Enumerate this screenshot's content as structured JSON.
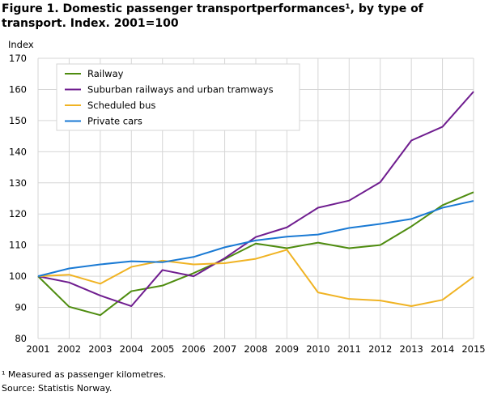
{
  "chart_data": {
    "type": "line",
    "title": "Figure 1. Domestic passenger transportperformances¹, by type of transport. Index. 2001=100",
    "ylabel": "Index",
    "xlabel": "",
    "ylim": [
      80,
      170
    ],
    "yticks": [
      80,
      90,
      100,
      110,
      120,
      130,
      140,
      150,
      160,
      170
    ],
    "grid": true,
    "legend_placement": "top-left",
    "x": [
      2001,
      2002,
      2003,
      2004,
      2005,
      2006,
      2007,
      2008,
      2009,
      2010,
      2011,
      2012,
      2013,
      2014,
      2015
    ],
    "series": [
      {
        "name": "Railway",
        "color": "#4e8c0f",
        "values": [
          100,
          90.2,
          87.5,
          95.2,
          97,
          101,
          105.5,
          110.5,
          109,
          110.8,
          109,
          110,
          116,
          122.8,
          127
        ]
      },
      {
        "name": "Suburban railways and urban tramways",
        "color": "#6f1d8f",
        "values": [
          100,
          98,
          93.8,
          90.4,
          102,
          100,
          105.8,
          112.6,
          115.7,
          122,
          124.3,
          130.2,
          143.6,
          148,
          159.3
        ]
      },
      {
        "name": "Scheduled bus",
        "color": "#f0b323",
        "values": [
          100,
          100.5,
          97.6,
          103,
          105,
          103.8,
          104.2,
          105.6,
          108.5,
          94.8,
          92.7,
          92.2,
          90.4,
          92.4,
          99.8
        ]
      },
      {
        "name": "Private cars",
        "color": "#1a7ad4",
        "values": [
          100,
          102.5,
          103.8,
          104.8,
          104.5,
          106.2,
          109.3,
          111.5,
          112.7,
          113.4,
          115.5,
          116.8,
          118.4,
          122,
          124.2
        ]
      }
    ]
  },
  "footnotes": {
    "note": "¹ Measured as passenger kilometres.",
    "source": "Source: Statistis Norway."
  }
}
